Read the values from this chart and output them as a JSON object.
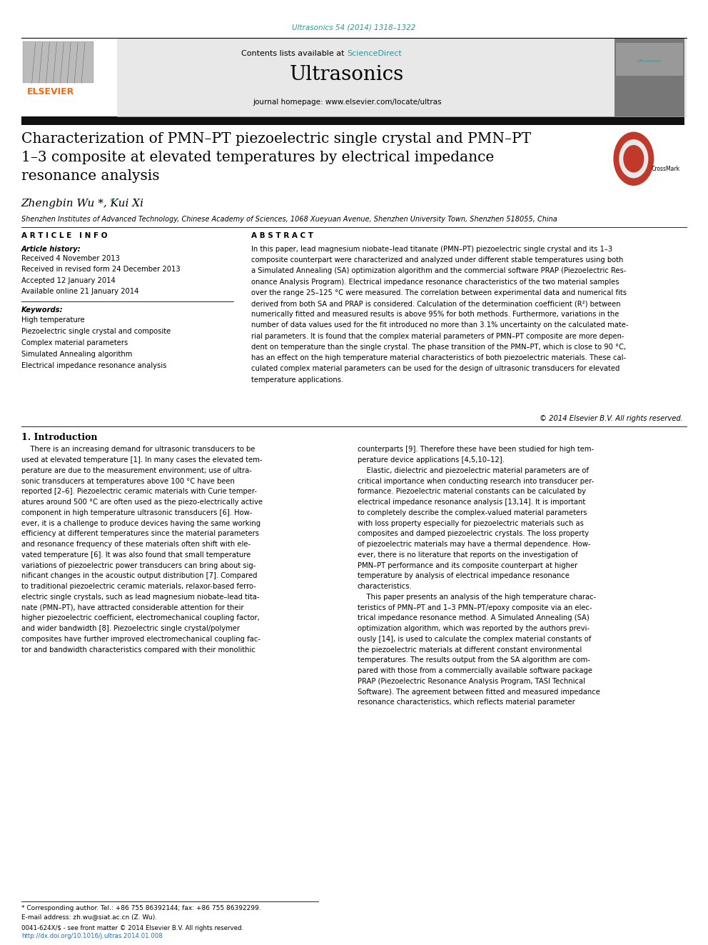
{
  "page_width": 9.92,
  "page_height": 13.23,
  "bg_color": "#ffffff",
  "journal_ref_color": "#2b9999",
  "journal_ref": "Ultrasonics 54 (2014) 1318–1322",
  "contents_text": "Contents lists available at ",
  "sciencedirect_text": "ScienceDirect",
  "sciencedirect_color": "#2b9999",
  "journal_name": "Ultrasonics",
  "journal_homepage": "journal homepage: www.elsevier.com/locate/ultras",
  "header_bg": "#e8e8e8",
  "elsevier_color": "#ff6600",
  "dark_bar_color": "#111111",
  "title": "Characterization of PMN–PT piezoelectric single crystal and PMN–PT\n1–3 composite at elevated temperatures by electrical impedance\nresonance analysis",
  "authors": "Zhengbin Wu *, Kui Xi",
  "affiliation": "Shenzhen Institutes of Advanced Technology, Chinese Academy of Sciences, 1068 Xueyuan Avenue, Shenzhen University Town, Shenzhen 518055, China",
  "article_info_header": "A R T I C L E   I N F O",
  "abstract_header": "A B S T R A C T",
  "article_history_label": "Article history:",
  "received_1": "Received 4 November 2013",
  "received_revised": "Received in revised form 24 December 2013",
  "accepted": "Accepted 12 January 2014",
  "available": "Available online 21 January 2014",
  "keywords_label": "Keywords:",
  "keyword_1": "High temperature",
  "keyword_2": "Piezoelectric single crystal and composite",
  "keyword_3": "Complex material parameters",
  "keyword_4": "Simulated Annealing algorithm",
  "keyword_5": "Electrical impedance resonance analysis",
  "abstract_text": "In this paper, lead magnesium niobate–lead titanate (PMN–PT) piezoelectric single crystal and its 1–3\ncomposite counterpart were characterized and analyzed under different stable temperatures using both\na Simulated Annealing (SA) optimization algorithm and the commercial software PRAP (Piezoelectric Res-\nonance Analysis Program). Electrical impedance resonance characteristics of the two material samples\nover the range 25–125 °C were measured. The correlation between experimental data and numerical fits\nderived from both SA and PRAP is considered. Calculation of the determination coefficient (R²) between\nnumerically fitted and measured results is above 95% for both methods. Furthermore, variations in the\nnumber of data values used for the fit introduced no more than 3.1% uncertainty on the calculated mate-\nrial parameters. It is found that the complex material parameters of PMN–PT composite are more depen-\ndent on temperature than the single crystal. The phase transition of the PMN–PT, which is close to 90 °C,\nhas an effect on the high temperature material characteristics of both piezoelectric materials. These cal-\nculated complex material parameters can be used for the design of ultrasonic transducers for elevated\ntemperature applications.",
  "copyright": "© 2014 Elsevier B.V. All rights reserved.",
  "intro_header": "1. Introduction",
  "intro_col1_lines": [
    "    There is an increasing demand for ultrasonic transducers to be",
    "used at elevated temperature [1]. In many cases the elevated tem-",
    "perature are due to the measurement environment; use of ultra-",
    "sonic transducers at temperatures above 100 °C have been",
    "reported [2–6]. Piezoelectric ceramic materials with Curie temper-",
    "atures around 500 °C are often used as the piezo-electrically active",
    "component in high temperature ultrasonic transducers [6]. How-",
    "ever, it is a challenge to produce devices having the same working",
    "efficiency at different temperatures since the material parameters",
    "and resonance frequency of these materials often shift with ele-",
    "vated temperature [6]. It was also found that small temperature",
    "variations of piezoelectric power transducers can bring about sig-",
    "nificant changes in the acoustic output distribution [7]. Compared",
    "to traditional piezoelectric ceramic materials, relaxor-based ferro-",
    "electric single crystals, such as lead magnesium niobate–lead tita-",
    "nate (PMN–PT), have attracted considerable attention for their",
    "higher piezoelectric coefficient, electromechanical coupling factor,",
    "and wider bandwidth [8]. Piezoelectric single crystal/polymer",
    "composites have further improved electromechanical coupling fac-",
    "tor and bandwidth characteristics compared with their monolithic"
  ],
  "intro_col2_lines": [
    "counterparts [9]. Therefore these have been studied for high tem-",
    "perature device applications [4,5,10–12].",
    "    Elastic, dielectric and piezoelectric material parameters are of",
    "critical importance when conducting research into transducer per-",
    "formance. Piezoelectric material constants can be calculated by",
    "electrical impedance resonance analysis [13,14]. It is important",
    "to completely describe the complex-valued material parameters",
    "with loss property especially for piezoelectric materials such as",
    "composites and damped piezoelectric crystals. The loss property",
    "of piezoelectric materials may have a thermal dependence. How-",
    "ever, there is no literature that reports on the investigation of",
    "PMN–PT performance and its composite counterpart at higher",
    "temperature by analysis of electrical impedance resonance",
    "characteristics.",
    "    This paper presents an analysis of the high temperature charac-",
    "teristics of PMN–PT and 1–3 PMN–PT/epoxy composite via an elec-",
    "trical impedance resonance method. A Simulated Annealing (SA)",
    "optimization algorithm, which was reported by the authors previ-",
    "ously [14], is used to calculate the complex material constants of",
    "the piezoelectric materials at different constant environmental",
    "temperatures. The results output from the SA algorithm are com-",
    "pared with those from a commercially available software package",
    "PRAP (Piezoelectric Resonance Analysis Program, TASI Technical",
    "Software). The agreement between fitted and measured impedance",
    "resonance characteristics, which reflects material parameter"
  ],
  "footnote_line1": "* Corresponding author. Tel.: +86 755 86392144; fax: +86 755 86392299.",
  "footnote_line2": "E-mail address: zh.wu@siat.ac.cn (Z. Wu).",
  "footer_line1": "0041-624X/$ - see front matter © 2014 Elsevier B.V. All rights reserved.",
  "footer_line2": "http://dx.doi.org/10.1016/j.ultras.2014.01.008",
  "footer_color": "#000000",
  "link_color": "#2b6cb0"
}
